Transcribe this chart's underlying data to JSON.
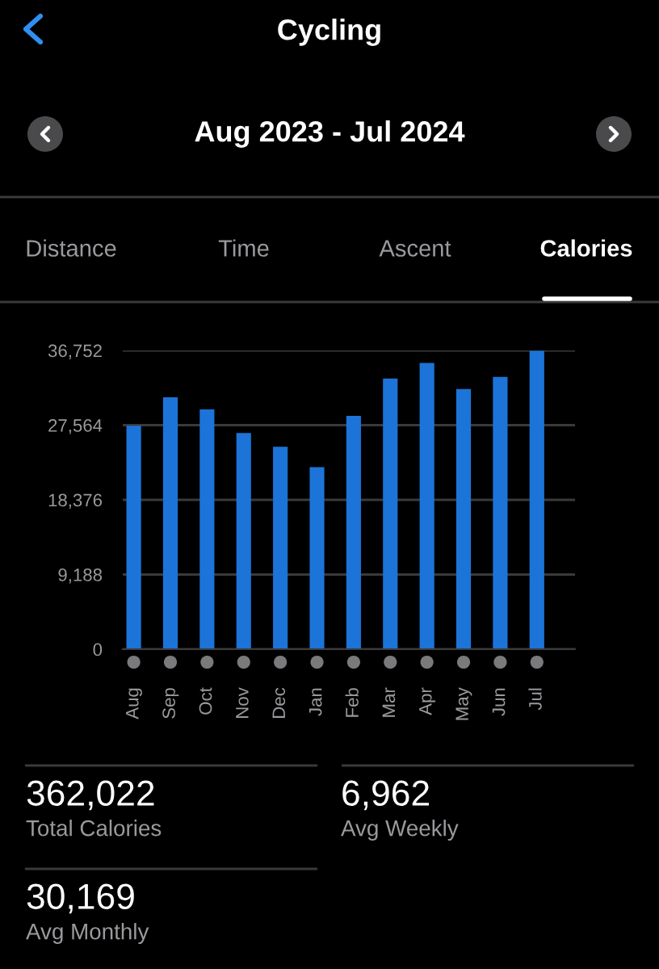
{
  "chart_data": {
    "type": "bar",
    "title": "Cycling",
    "subtitle": "Aug 2023 - Jul 2024",
    "categories": [
      "Aug",
      "Sep",
      "Oct",
      "Nov",
      "Dec",
      "Jan",
      "Feb",
      "Mar",
      "Apr",
      "May",
      "Jun",
      "Jul"
    ],
    "series": [
      {
        "color": "#1c74d8",
        "values": [
          27500,
          31000,
          29500,
          26600,
          24900,
          22400,
          28700,
          33300,
          35200,
          32000,
          33500,
          36700
        ]
      }
    ],
    "ylim": [
      0,
      36752
    ],
    "yticks": [
      0,
      {
        "value": 9188,
        "label": "9,188"
      },
      {
        "value": 18376,
        "label": "18,376"
      },
      {
        "value": 27564,
        "label": "27,564"
      },
      {
        "value": 36752,
        "label": "36,752"
      }
    ],
    "grid": "y",
    "annotations": [
      "Distance",
      "Time",
      "Ascent",
      "Calories",
      "362,022",
      "Total Calories",
      "6,962",
      "Avg Weekly",
      "30,169",
      "Avg Monthly"
    ]
  }
}
